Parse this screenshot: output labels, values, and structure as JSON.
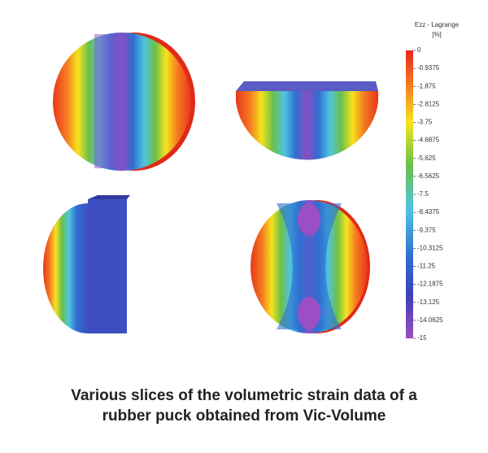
{
  "colorbar": {
    "title": "Ezz - Lagrange",
    "unit": "[%]",
    "ticks": [
      0,
      -0.9375,
      -1.875,
      -2.8125,
      -3.75,
      -4.6875,
      -5.625,
      -6.5625,
      -7.5,
      -8.4375,
      -9.375,
      -10.3125,
      -11.25,
      -12.1875,
      -13.125,
      -14.0625,
      -15
    ]
  },
  "caption": {
    "lines": [
      "Various slices of the volumetric strain data of a",
      "rubber puck obtained from Vic-Volume"
    ]
  }
}
